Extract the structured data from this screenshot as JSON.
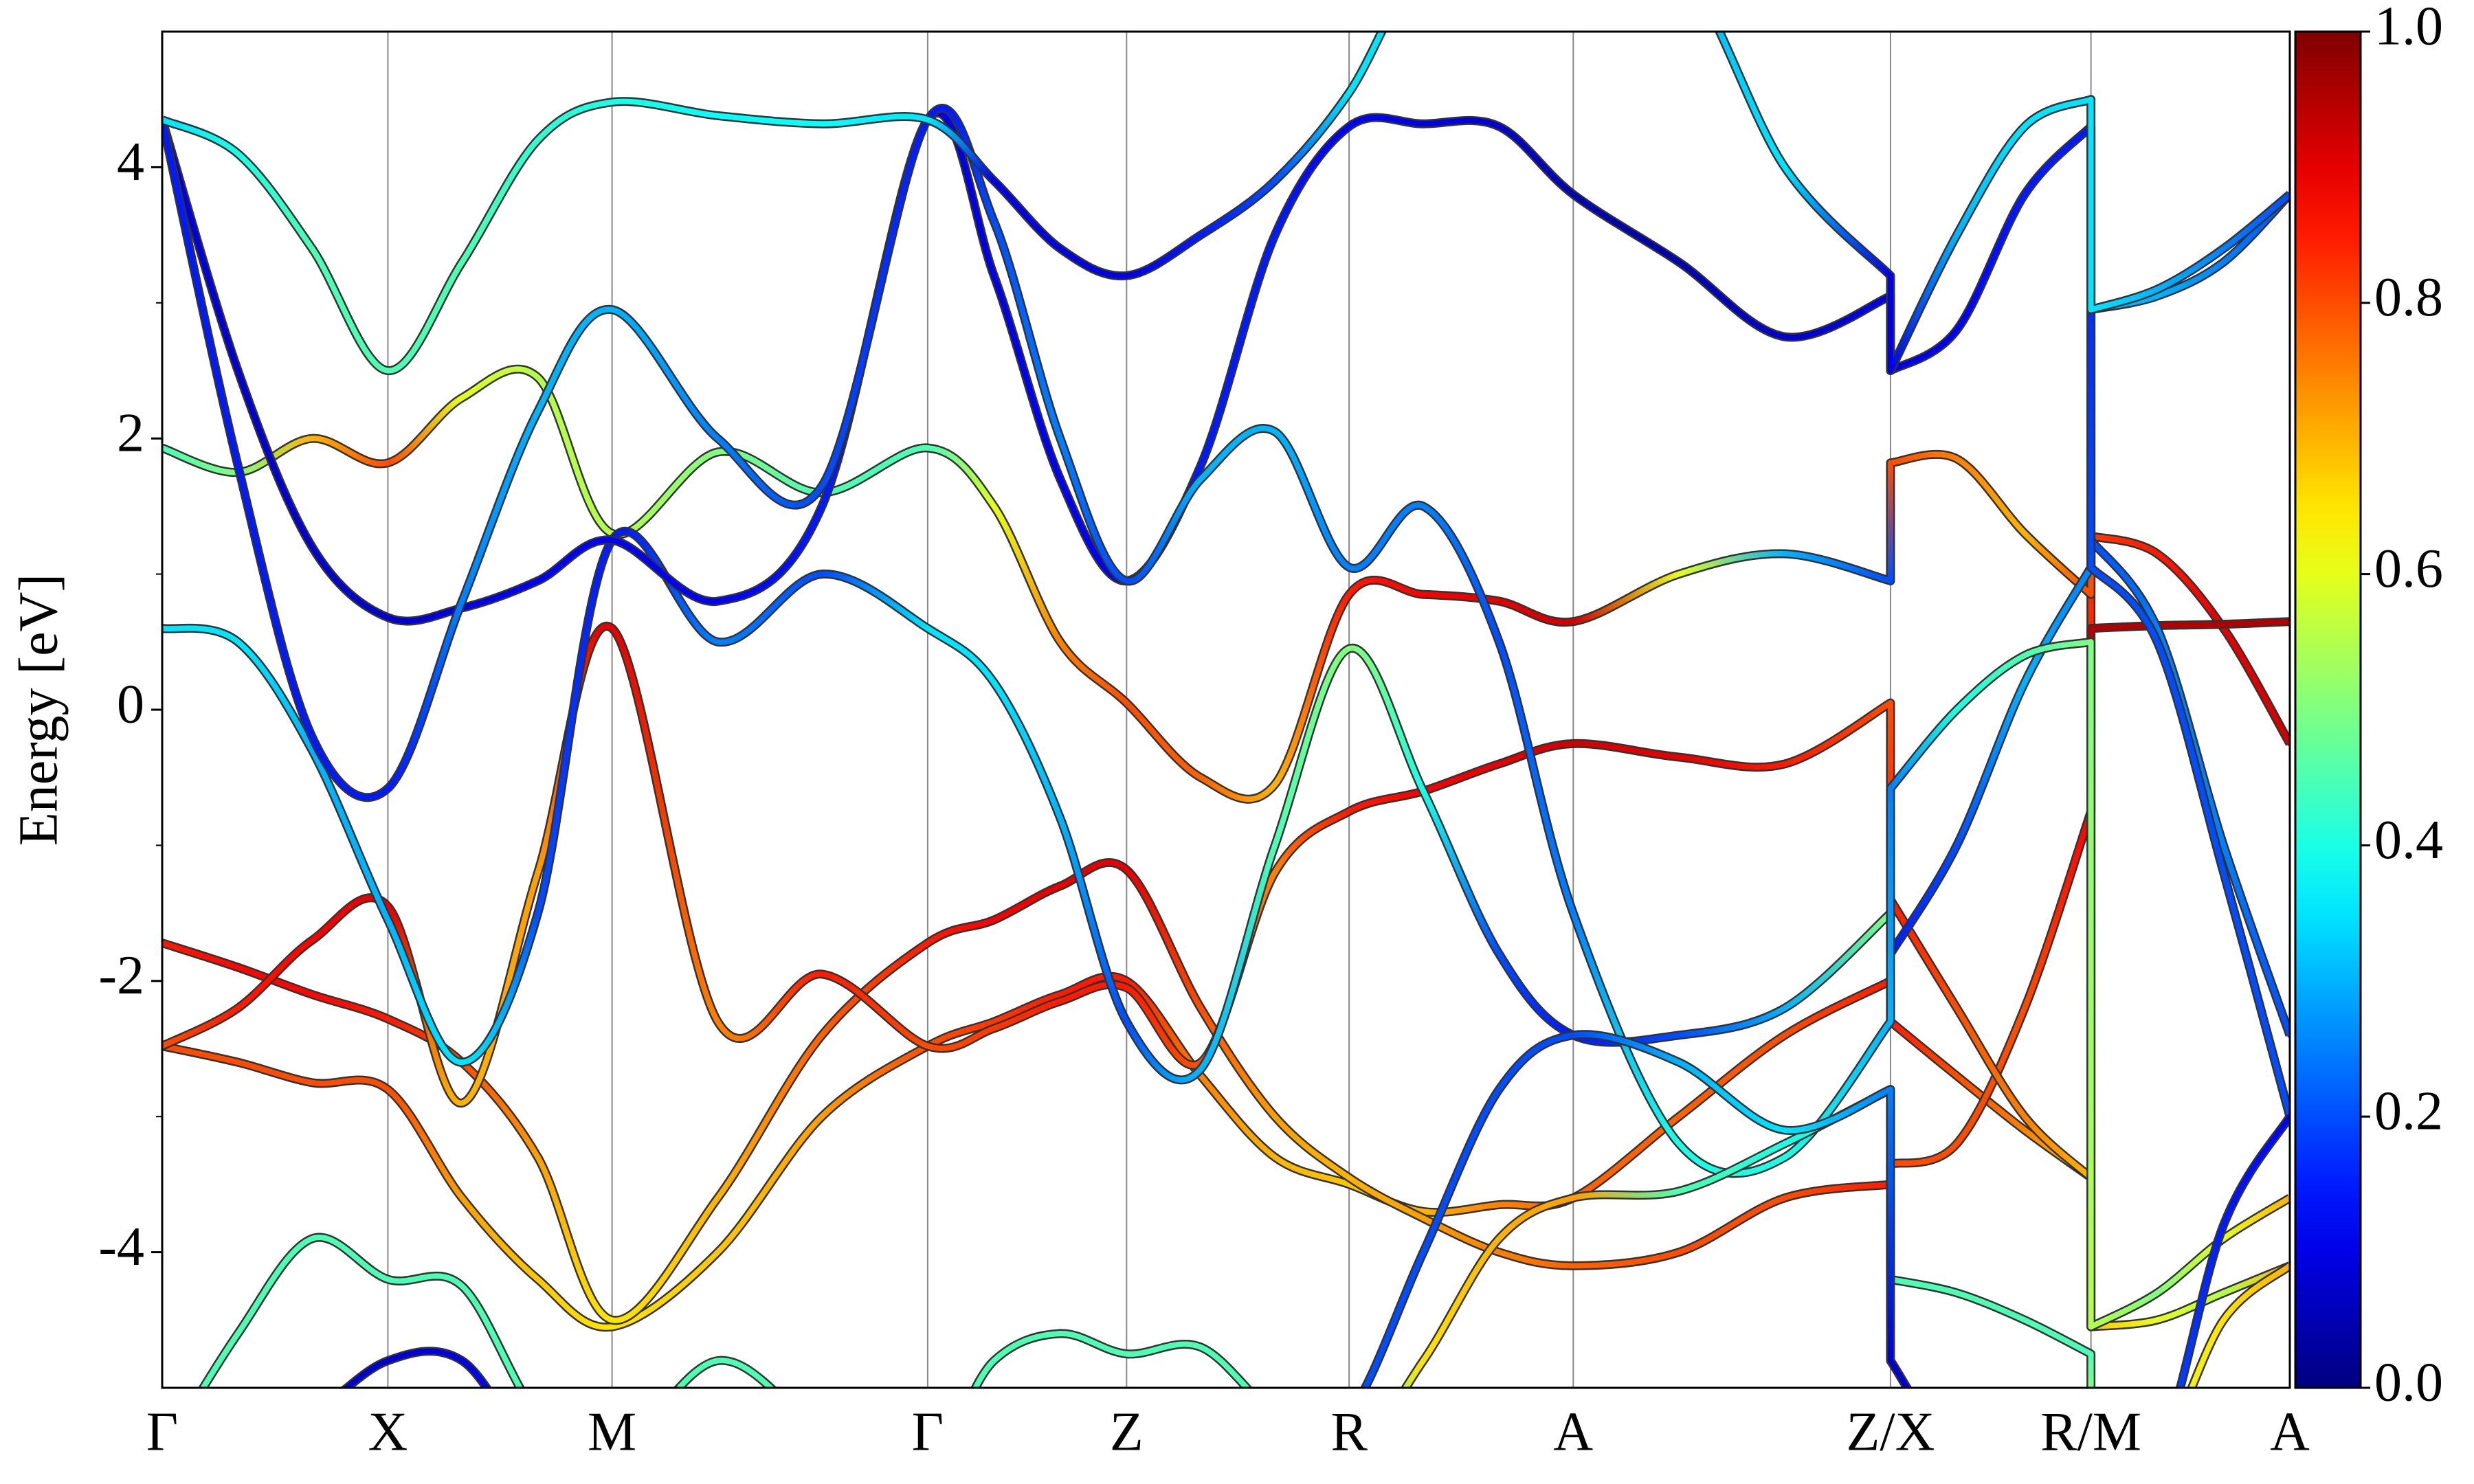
{
  "chart_data": {
    "type": "band-structure",
    "ylabel": "Energy [eV]",
    "colormap": "jet",
    "x": [
      0,
      0.48,
      0.95,
      1.43,
      1.9,
      2.38,
      2.85,
      3.52,
      4.18,
      4.85,
      5.27,
      5.69,
      6.11,
      6.58,
      7.05,
      7.52,
      7.99,
      8.47,
      8.94,
      9.61,
      10.28,
      10.95,
      10.95,
      11.37,
      11.8,
      12.22,
      12.22,
      12.64,
      13.06,
      13.48
    ],
    "xlim": [
      0,
      13.48
    ],
    "xticks": [
      {
        "value": 0,
        "label": "Γ"
      },
      {
        "value": 1.43,
        "label": "X"
      },
      {
        "value": 2.85,
        "label": "M"
      },
      {
        "value": 4.85,
        "label": "Γ"
      },
      {
        "value": 6.11,
        "label": "Z"
      },
      {
        "value": 7.52,
        "label": "R"
      },
      {
        "value": 8.94,
        "label": "A"
      },
      {
        "value": 10.95,
        "label": "Z/X"
      },
      {
        "value": 12.22,
        "label": "R/M"
      },
      {
        "value": 13.48,
        "label": "A"
      }
    ],
    "ylim": [
      -5,
      5
    ],
    "yticks": [
      -4,
      -2,
      0,
      2,
      4
    ],
    "yminorticks": [
      -3,
      -1,
      1,
      3
    ],
    "grid": true,
    "cbar_lim": [
      0,
      1
    ],
    "cbar_ticks": [
      {
        "value": 0,
        "label": "0.0"
      },
      0.2,
      0.4,
      0.6,
      0.8,
      {
        "value": 1,
        "label": "1.0"
      }
    ],
    "series": [
      {
        "values": [
          -2.48,
          -2.6,
          -2.75,
          -2.8,
          -3.6,
          -4.2,
          -4.55,
          -4.0,
          -3.0,
          -2.48,
          -2.3,
          -2.1,
          -2.0,
          -2.7,
          -3.3,
          -3.5,
          -3.7,
          -3.65,
          -3.6,
          -3.0,
          -2.4,
          -2.0,
          -2.3,
          -2.7,
          -3.1,
          -3.45,
          -4.55,
          -4.5,
          -4.3,
          -4.1
        ],
        "weights": [
          0.8,
          0.8,
          0.8,
          0.8,
          0.72,
          0.68,
          0.65,
          0.68,
          0.72,
          0.8,
          0.82,
          0.85,
          0.85,
          0.75,
          0.7,
          0.68,
          0.7,
          0.75,
          0.78,
          0.78,
          0.8,
          0.85,
          0.85,
          0.8,
          0.75,
          0.68,
          0.68,
          0.6,
          0.55,
          0.7
        ]
      },
      {
        "values": [
          -1.72,
          -1.9,
          -2.1,
          -2.28,
          -2.6,
          -3.3,
          -4.5,
          -3.6,
          -2.4,
          -1.72,
          -1.55,
          -1.3,
          -1.18,
          -2.2,
          -3.0,
          -3.45,
          -3.75,
          -4.0,
          -4.1,
          -4.0,
          -3.6,
          -3.5,
          -3.35,
          -3.2,
          -2.2,
          -0.75,
          1.28,
          1.15,
          0.6,
          -0.25
        ],
        "weights": [
          0.85,
          0.87,
          0.87,
          0.85,
          0.8,
          0.72,
          0.65,
          0.7,
          0.78,
          0.85,
          0.88,
          0.9,
          0.9,
          0.8,
          0.72,
          0.7,
          0.72,
          0.75,
          0.78,
          0.8,
          0.8,
          0.85,
          0.8,
          0.8,
          0.8,
          0.88,
          0.82,
          0.85,
          0.9,
          0.92
        ]
      },
      {
        "values": [
          -2.48,
          -2.2,
          -1.7,
          -1.45,
          -2.9,
          -1.2,
          0.6,
          -2.3,
          -1.95,
          -2.48,
          -2.35,
          -2.15,
          -2.05,
          -2.6,
          -1.2,
          -0.75,
          -0.6,
          -0.4,
          -0.25,
          -0.35,
          -0.4,
          0.05,
          -1.4,
          -2.2,
          -3.0,
          -3.45,
          0.6,
          0.62,
          0.63,
          0.65
        ],
        "weights": [
          0.8,
          0.85,
          0.88,
          0.9,
          0.7,
          0.72,
          0.9,
          0.75,
          0.85,
          0.8,
          0.82,
          0.85,
          0.85,
          0.8,
          0.75,
          0.85,
          0.88,
          0.9,
          0.92,
          0.9,
          0.85,
          0.8,
          0.85,
          0.8,
          0.75,
          0.7,
          0.95,
          0.95,
          0.95,
          0.95
        ]
      },
      {
        "values": [
          1.93,
          1.75,
          2.0,
          1.82,
          2.3,
          2.45,
          1.3,
          1.9,
          1.6,
          1.93,
          1.5,
          0.5,
          0.05,
          -0.5,
          -0.55,
          0.85,
          0.85,
          0.8,
          0.65,
          1.0,
          1.15,
          0.95,
          1.82,
          1.85,
          1.3,
          0.85,
          2.95,
          3.05,
          3.3,
          3.8
        ],
        "weights": [
          0.45,
          0.5,
          0.7,
          0.8,
          0.6,
          0.55,
          0.55,
          0.5,
          0.45,
          0.45,
          0.6,
          0.75,
          0.8,
          0.78,
          0.7,
          0.85,
          0.88,
          0.9,
          0.92,
          0.6,
          0.3,
          0.2,
          0.8,
          0.75,
          0.7,
          0.8,
          0.3,
          0.3,
          0.25,
          0.2
        ]
      },
      {
        "values": [
          0.6,
          0.5,
          -0.3,
          -1.55,
          -2.6,
          -1.5,
          1.25,
          0.5,
          1.0,
          0.6,
          0.2,
          -0.8,
          -2.3,
          -2.65,
          -1.0,
          0.45,
          -0.6,
          -1.8,
          -2.4,
          -2.4,
          -2.2,
          -1.5,
          -1.8,
          -1.0,
          0.2,
          1.05,
          1.25,
          0.6,
          -1.0,
          -2.4
        ],
        "weights": [
          0.35,
          0.35,
          0.3,
          0.3,
          0.35,
          0.2,
          0.15,
          0.25,
          0.2,
          0.35,
          0.35,
          0.3,
          0.2,
          0.3,
          0.45,
          0.5,
          0.4,
          0.2,
          0.15,
          0.2,
          0.3,
          0.5,
          0.15,
          0.2,
          0.3,
          0.25,
          0.2,
          0.25,
          0.25,
          0.2
        ]
      },
      {
        "values": [
          4.35,
          2.5,
          1.2,
          0.68,
          0.75,
          0.95,
          1.25,
          0.8,
          1.5,
          4.35,
          3.2,
          1.7,
          0.95,
          1.8,
          3.5,
          4.3,
          4.32,
          4.3,
          3.8,
          3.3,
          2.75,
          3.05,
          2.5,
          2.8,
          3.8,
          4.3,
          1.05,
          0.5,
          -1.2,
          -3.0
        ],
        "weights": [
          0.1,
          0.08,
          0.08,
          0.08,
          0.1,
          0.12,
          0.12,
          0.12,
          0.15,
          0.1,
          0.1,
          0.12,
          0.12,
          0.15,
          0.15,
          0.12,
          0.1,
          0.08,
          0.05,
          0.05,
          0.08,
          0.1,
          0.1,
          0.12,
          0.15,
          0.15,
          0.2,
          0.2,
          0.2,
          0.2
        ]
      },
      {
        "values": [
          4.35,
          1.8,
          -0.2,
          -0.58,
          0.8,
          2.2,
          2.95,
          2.0,
          1.65,
          4.35,
          3.6,
          2.0,
          0.95,
          1.7,
          2.05,
          1.05,
          1.5,
          0.5,
          -1.5,
          -3.2,
          -3.3,
          -2.3,
          -0.58,
          0.0,
          0.4,
          0.5,
          -4.55,
          -4.3,
          -3.9,
          -3.6
        ],
        "weights": [
          0.15,
          0.15,
          0.15,
          0.15,
          0.25,
          0.3,
          0.3,
          0.25,
          0.2,
          0.15,
          0.2,
          0.25,
          0.2,
          0.3,
          0.3,
          0.25,
          0.25,
          0.2,
          0.25,
          0.4,
          0.4,
          0.3,
          0.25,
          0.4,
          0.45,
          0.5,
          0.55,
          0.5,
          0.6,
          0.7
        ]
      },
      {
        "values": [
          -5.5,
          -4.6,
          -3.9,
          -4.2,
          -4.25,
          -5.2,
          -5.5,
          -4.8,
          -5.3,
          -5.5,
          -4.8,
          -4.6,
          -4.75,
          -4.7,
          -5.2,
          -5.5,
          -4.8,
          -3.9,
          -3.6,
          -3.55,
          -3.2,
          -2.8,
          -4.2,
          -4.3,
          -4.5,
          -4.75,
          -5.5,
          -5.5,
          -4.5,
          -4.1
        ],
        "weights": [
          0.45,
          0.45,
          0.45,
          0.45,
          0.45,
          0.45,
          0.45,
          0.45,
          0.45,
          0.45,
          0.45,
          0.45,
          0.45,
          0.45,
          0.45,
          0.45,
          0.65,
          0.7,
          0.72,
          0.45,
          0.4,
          0.4,
          0.45,
          0.45,
          0.45,
          0.45,
          0.6,
          0.6,
          0.65,
          0.7
        ]
      },
      {
        "values": [
          4.35,
          4.1,
          3.4,
          2.5,
          3.3,
          4.2,
          4.48,
          4.38,
          4.32,
          4.35,
          3.9,
          3.4,
          3.2,
          3.5,
          3.9,
          4.55,
          5.5,
          5.5,
          5.5,
          5.5,
          4.0,
          3.2,
          2.5,
          3.5,
          4.3,
          4.5,
          2.95,
          3.1,
          3.4,
          3.8
        ],
        "weights": [
          0.35,
          0.4,
          0.45,
          0.45,
          0.45,
          0.42,
          0.4,
          0.38,
          0.38,
          0.35,
          0.1,
          0.1,
          0.1,
          0.15,
          0.2,
          0.35,
          0.35,
          0.3,
          0.3,
          0.3,
          0.35,
          0.1,
          0.1,
          0.3,
          0.35,
          0.35,
          0.35,
          0.3,
          0.25,
          0.2
        ]
      },
      {
        "values": [
          -5.5,
          -5.5,
          -5.2,
          -4.8,
          -4.8,
          -5.5,
          -5.5,
          -5.5,
          -5.5,
          -5.5,
          -5.5,
          -5.5,
          -5.5,
          -5.5,
          -5.5,
          -5.2,
          -4.0,
          -2.8,
          -2.4,
          -2.6,
          -3.1,
          -2.8,
          -4.8,
          -5.5,
          -5.5,
          -5.5,
          -5.5,
          -5.5,
          -3.8,
          -3.0
        ],
        "weights": [
          0.1,
          0.1,
          0.08,
          0.08,
          0.1,
          0.15,
          0.2,
          0.2,
          0.2,
          0.2,
          0.2,
          0.2,
          0.2,
          0.2,
          0.2,
          0.2,
          0.2,
          0.2,
          0.2,
          0.3,
          0.35,
          0.25,
          0.08,
          0.1,
          0.2,
          0.2,
          0.2,
          0.2,
          0.15,
          0.12
        ]
      }
    ]
  }
}
